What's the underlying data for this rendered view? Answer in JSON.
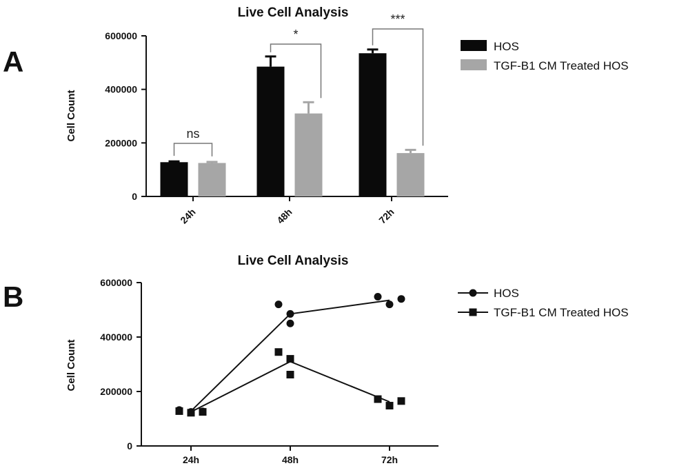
{
  "chart_data": [
    {
      "panel": "A",
      "type": "bar",
      "title": "Live Cell Analysis",
      "ylabel": "Cell Count",
      "xlabel": "",
      "ylim": [
        0,
        600000
      ],
      "yticks": [
        "0",
        "200000",
        "400000",
        "600000"
      ],
      "categories": [
        "24h",
        "48h",
        "72h"
      ],
      "series": [
        {
          "name": "HOS",
          "color": "#0a0a0a",
          "values": [
            128000,
            485000,
            535000
          ],
          "errors": [
            3000,
            38000,
            14000
          ]
        },
        {
          "name": "TGF-B1 CM Treated HOS",
          "color": "#a6a6a6",
          "values": [
            125000,
            310000,
            162000
          ],
          "errors": [
            4000,
            42000,
            12000
          ]
        }
      ],
      "significance": [
        "ns",
        "*",
        "***"
      ],
      "legend": "right"
    },
    {
      "panel": "B",
      "type": "scatter",
      "title": "Live Cell Analysis",
      "ylabel": "Cell Count",
      "xlabel": "",
      "ylim": [
        0,
        600000
      ],
      "yticks": [
        "0",
        "200000",
        "400000",
        "600000"
      ],
      "categories": [
        "24h",
        "48h",
        "72h"
      ],
      "series": [
        {
          "name": "HOS",
          "marker": "circle",
          "points": [
            {
              "x": "24h",
              "y": 132000,
              "offset": -1
            },
            {
              "x": "24h",
              "y": 125000,
              "offset": 0
            },
            {
              "x": "24h",
              "y": 127000,
              "offset": 1
            },
            {
              "x": "48h",
              "y": 520000,
              "offset": -1
            },
            {
              "x": "48h",
              "y": 485000,
              "offset": 0
            },
            {
              "x": "48h",
              "y": 450000,
              "offset": 0
            },
            {
              "x": "72h",
              "y": 548000,
              "offset": -1
            },
            {
              "x": "72h",
              "y": 520000,
              "offset": 0
            },
            {
              "x": "72h",
              "y": 540000,
              "offset": 1
            }
          ],
          "means": [
            128000,
            485000,
            535000
          ]
        },
        {
          "name": "TGF-B1 CM Treated HOS",
          "marker": "square",
          "points": [
            {
              "x": "24h",
              "y": 128000,
              "offset": -1
            },
            {
              "x": "24h",
              "y": 122000,
              "offset": 0
            },
            {
              "x": "24h",
              "y": 125000,
              "offset": 1
            },
            {
              "x": "48h",
              "y": 345000,
              "offset": -1
            },
            {
              "x": "48h",
              "y": 320000,
              "offset": 0
            },
            {
              "x": "48h",
              "y": 262000,
              "offset": 0
            },
            {
              "x": "72h",
              "y": 172000,
              "offset": -1
            },
            {
              "x": "72h",
              "y": 148000,
              "offset": 0
            },
            {
              "x": "72h",
              "y": 165000,
              "offset": 1
            }
          ],
          "means": [
            125000,
            310000,
            162000
          ]
        }
      ],
      "legend": "right"
    }
  ]
}
